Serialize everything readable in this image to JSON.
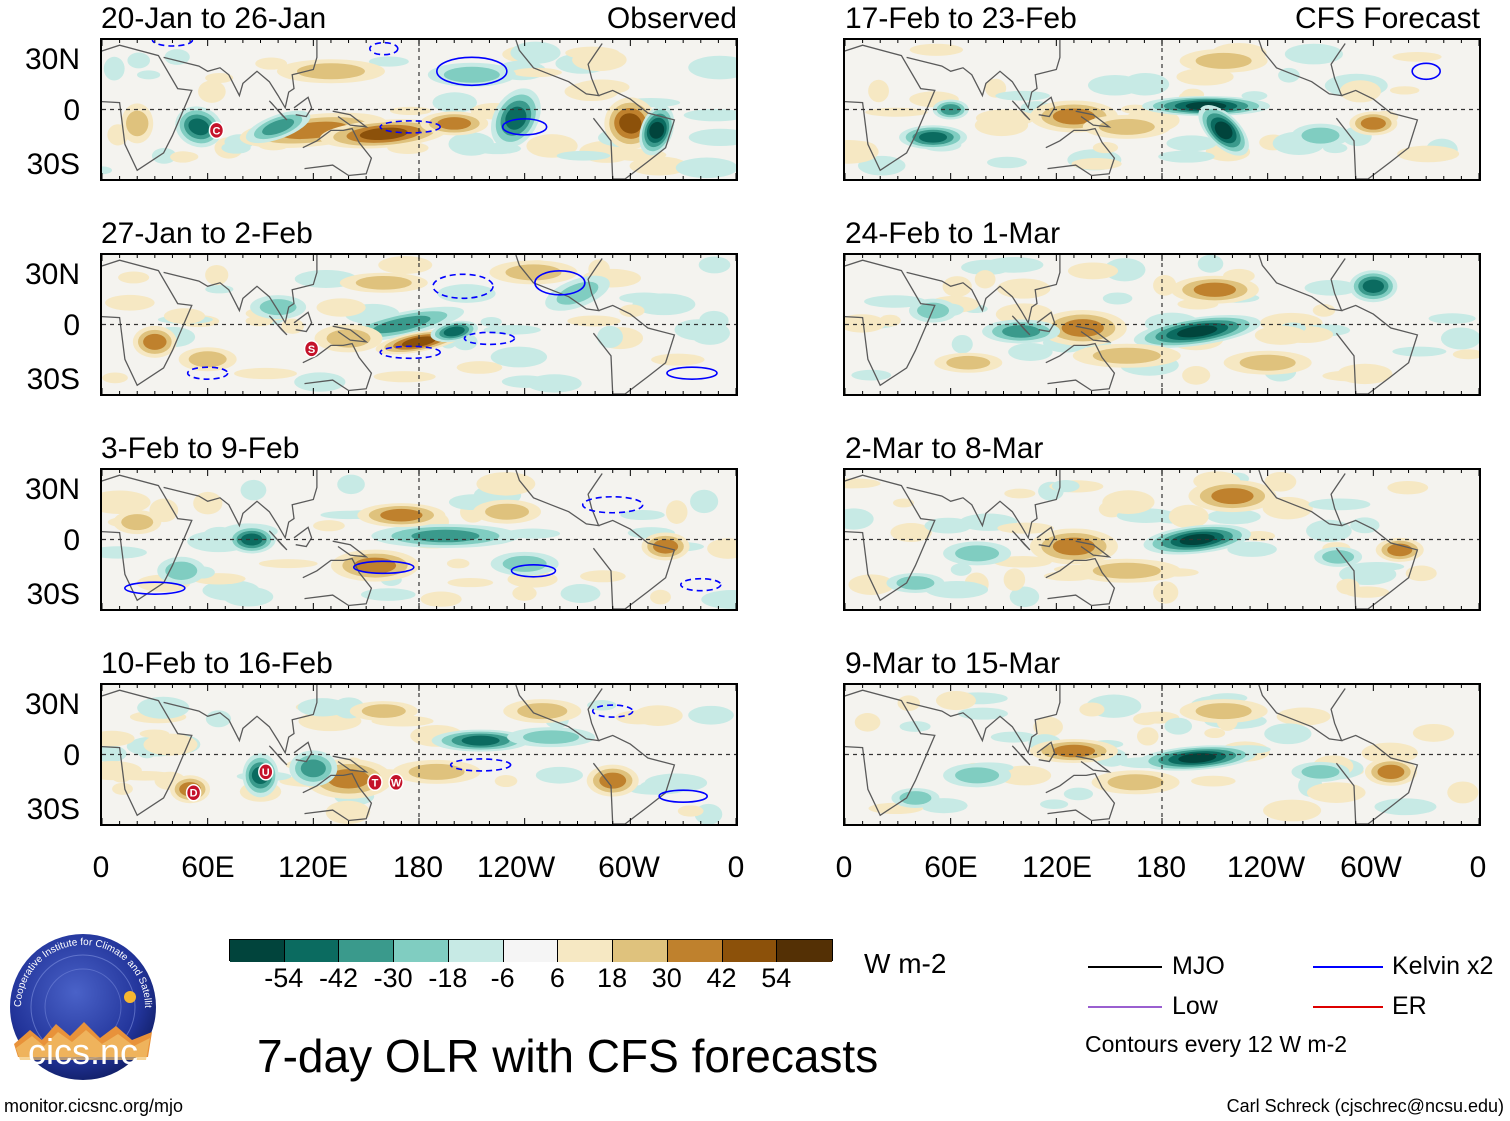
{
  "panels": {
    "obs": [
      {
        "title": "20-Jan to 26-Jan",
        "tag": "Observed"
      },
      {
        "title": "27-Jan to 2-Feb",
        "tag": ""
      },
      {
        "title": "3-Feb to 9-Feb",
        "tag": ""
      },
      {
        "title": "10-Feb to 16-Feb",
        "tag": ""
      }
    ],
    "fcst": [
      {
        "title": "17-Feb to 23-Feb",
        "tag": "CFS Forecast"
      },
      {
        "title": "24-Feb to 1-Mar",
        "tag": ""
      },
      {
        "title": "2-Mar to 8-Mar",
        "tag": ""
      },
      {
        "title": "9-Mar to 15-Mar",
        "tag": ""
      }
    ]
  },
  "axes": {
    "y_labels": [
      "30N",
      "0",
      "30S"
    ],
    "x_labels": [
      "0",
      "60E",
      "120E",
      "180",
      "120W",
      "60W",
      "0"
    ]
  },
  "markers": {
    "p0": [
      "C"
    ],
    "p1": [
      "S"
    ],
    "p3": [
      "D",
      "U",
      "T",
      "W"
    ]
  },
  "colorbar": {
    "colors": [
      "#01443c",
      "#0b6b60",
      "#3a9a8c",
      "#80cdc1",
      "#c7eae5",
      "#f5f5f5",
      "#f6e8c3",
      "#dfc27d",
      "#bf812d",
      "#8c510a",
      "#543005"
    ],
    "ticks": [
      "-54",
      "-42",
      "-30",
      "-18",
      "-6",
      "6",
      "18",
      "30",
      "42",
      "54"
    ],
    "units": "W m-2"
  },
  "legend": {
    "mjo": {
      "label": "MJO",
      "color": "#000000"
    },
    "kelvin": {
      "label": "Kelvin x2",
      "color": "#0000ff"
    },
    "low": {
      "label": "Low",
      "color": "#9a5fd0"
    },
    "er": {
      "label": "ER",
      "color": "#dd0000"
    },
    "contours_note": "Contours every 12 W m-2"
  },
  "logo": {
    "text": "cics.nc",
    "ring_text": "Cooperative Institute for Climate and Satellites"
  },
  "main_title": "7-day OLR with CFS forecasts",
  "footer": {
    "left": "monitor.cicsnc.org/mjo",
    "right": "Carl Schreck (cjschrec@ncsu.edu)"
  }
}
